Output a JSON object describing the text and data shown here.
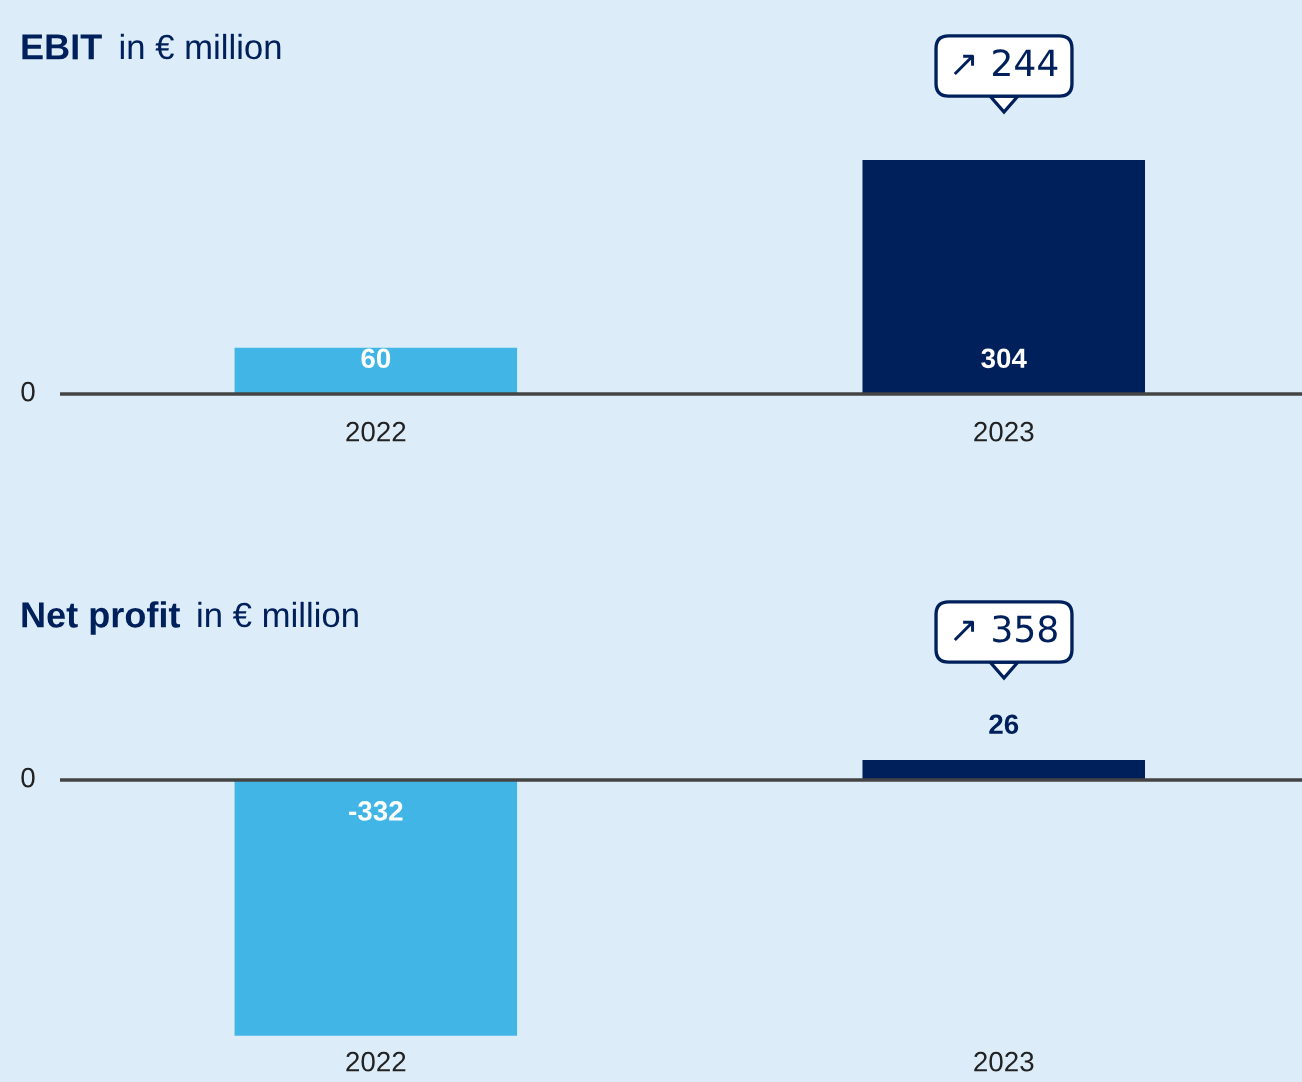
{
  "chart_data": [
    {
      "type": "bar",
      "title": "EBIT",
      "subtitle": "in € million",
      "categories": [
        "2022",
        "2023"
      ],
      "values": [
        60,
        304
      ],
      "colors": [
        "#41b6e6",
        "#00205b"
      ],
      "data_labels": true,
      "annotations": [
        "0",
        "↗ 244"
      ]
    },
    {
      "type": "bar",
      "title": "Net profit",
      "subtitle": "in € million",
      "categories": [
        "2022",
        "2023"
      ],
      "values": [
        -332,
        26
      ],
      "colors": [
        "#41b6e6",
        "#00205b"
      ],
      "data_labels": true,
      "annotations": [
        "0",
        "↗ 358"
      ]
    }
  ]
}
